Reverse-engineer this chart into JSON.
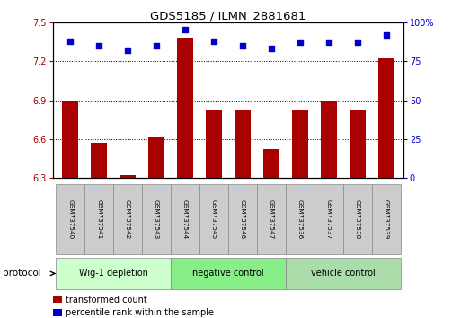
{
  "title": "GDS5185 / ILMN_2881681",
  "samples": [
    "GSM737540",
    "GSM737541",
    "GSM737542",
    "GSM737543",
    "GSM737544",
    "GSM737545",
    "GSM737546",
    "GSM737547",
    "GSM737536",
    "GSM737537",
    "GSM737538",
    "GSM737539"
  ],
  "bar_values": [
    6.9,
    6.57,
    6.32,
    6.61,
    7.38,
    6.82,
    6.82,
    6.52,
    6.82,
    6.9,
    6.82,
    7.22
  ],
  "dot_values": [
    88,
    85,
    82,
    85,
    95,
    88,
    85,
    83,
    87,
    87,
    87,
    92
  ],
  "ylim_left": [
    6.3,
    7.5
  ],
  "ylim_right": [
    0,
    100
  ],
  "yticks_left": [
    6.3,
    6.6,
    6.9,
    7.2,
    7.5
  ],
  "yticks_right": [
    0,
    25,
    50,
    75,
    100
  ],
  "bar_color": "#AA0000",
  "dot_color": "#0000CC",
  "groups": [
    {
      "label": "Wig-1 depletion",
      "start": 0,
      "end": 4
    },
    {
      "label": "negative control",
      "start": 4,
      "end": 8
    },
    {
      "label": "vehicle control",
      "start": 8,
      "end": 12
    }
  ],
  "group_colors": [
    "#CCFFCC",
    "#88EE88",
    "#AADDAA"
  ],
  "sample_box_color": "#CCCCCC",
  "protocol_label": "protocol",
  "legend_bar_label": "transformed count",
  "legend_dot_label": "percentile rank within the sample",
  "bar_width": 0.55
}
